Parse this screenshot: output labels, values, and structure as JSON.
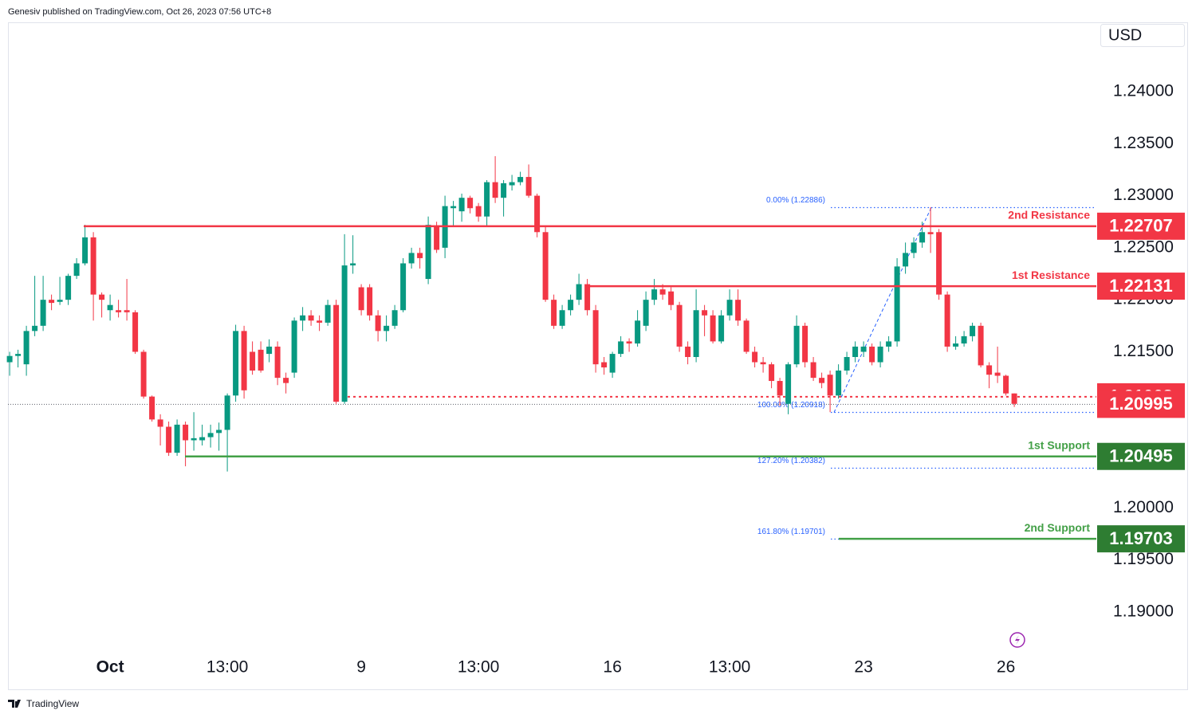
{
  "header": {
    "publisher": "Genesiv published on TradingView.com, Oct 26, 2023 07:56 UTC+8",
    "brand": "TradingView"
  },
  "chart_data": {
    "type": "candlestick",
    "currency": "USD",
    "up_color": "#089981",
    "down_color": "#f23645",
    "xlim": [
      -0.2,
      129.8
    ],
    "xticks": [
      {
        "value": 12,
        "label": "Oct"
      },
      {
        "value": 26,
        "label": "13:00"
      },
      {
        "value": 42,
        "label": "9"
      },
      {
        "value": 56,
        "label": "13:00"
      },
      {
        "value": 72,
        "label": "16"
      },
      {
        "value": 86,
        "label": "13:00"
      },
      {
        "value": 102,
        "label": "23"
      },
      {
        "value": 119,
        "label": "26"
      }
    ],
    "ylim": [
      1.18257,
      1.24666
    ],
    "yticks": [
      {
        "value": 1.19,
        "label": "1.19000"
      },
      {
        "value": 1.195,
        "label": "1.19500"
      },
      {
        "value": 1.2,
        "label": "1.20000"
      },
      {
        "value": 1.205,
        "label": "1.20500"
      },
      {
        "value": 1.21,
        "label": "1.21000"
      },
      {
        "value": 1.215,
        "label": "1.21500"
      },
      {
        "value": 1.22,
        "label": "1.22000"
      },
      {
        "value": 1.225,
        "label": "1.22500"
      },
      {
        "value": 1.23,
        "label": "1.23000"
      },
      {
        "value": 1.235,
        "label": "1.23500"
      },
      {
        "value": 1.24,
        "label": "1.24000"
      }
    ],
    "open": [
      1.214,
      1.2146,
      1.2138,
      1.217,
      1.2175,
      1.22,
      1.2198,
      1.22,
      1.2223,
      1.2235,
      1.226,
      1.2205,
      1.219,
      1.219,
      1.219,
      1.2188,
      1.215,
      1.2107,
      1.2085,
      1.2078,
      1.2053,
      1.208,
      1.2065,
      1.2065,
      1.2068,
      1.2072,
      1.2075,
      1.2108,
      1.217,
      1.215,
      1.2152,
      1.2148,
      1.2155,
      1.2125,
      1.213,
      1.218,
      1.2185,
      1.218,
      1.2178,
      1.2195,
      1.2102,
      1.2233,
      1.2212,
      1.2212,
      1.2185,
      1.217,
      1.2175,
      1.219,
      1.2235,
      1.2245,
      1.222,
      1.227,
      1.225,
      1.2288,
      1.2285,
      1.2298,
      1.229,
      1.228,
      1.2313,
      1.2298,
      1.231,
      1.2313,
      1.2318,
      1.23,
      1.2265,
      1.22,
      1.2175,
      1.219,
      1.22,
      1.2215,
      1.219,
      1.214,
      1.213,
      1.2148,
      1.216,
      1.2158,
      1.2175,
      1.22,
      1.221,
      1.2208,
      1.2195,
      1.2155,
      1.2145,
      1.219,
      1.2185,
      1.216,
      1.2185,
      1.22,
      1.218,
      1.215,
      1.214,
      1.2138,
      1.2122,
      1.21,
      1.2138,
      1.2175,
      1.214,
      1.2125,
      1.2128,
      1.2108,
      1.2132,
      1.2145,
      1.215,
      1.2155,
      1.214,
      1.2155,
      1.216,
      1.2232,
      1.2245,
      1.2255,
      1.2265,
      1.2265,
      1.2205,
      1.2155,
      1.2158,
      1.2165,
      1.2175,
      1.2137,
      1.213,
      1.2127,
      1.211
    ],
    "high": [
      1.215,
      1.2152,
      1.2175,
      1.2223,
      1.2223,
      1.2205,
      1.2222,
      1.2225,
      1.224,
      1.2272,
      1.2265,
      1.2207,
      1.2205,
      1.22,
      1.222,
      1.219,
      1.2152,
      1.2108,
      1.209,
      1.2083,
      1.2085,
      1.2083,
      1.2092,
      1.208,
      1.208,
      1.2082,
      1.211,
      1.2176,
      1.2175,
      1.216,
      1.216,
      1.2162,
      1.216,
      1.213,
      1.2183,
      1.2193,
      1.219,
      1.2185,
      1.22,
      1.22,
      1.2263,
      1.2262,
      1.2215,
      1.2215,
      1.219,
      1.2185,
      1.2195,
      1.224,
      1.225,
      1.225,
      1.228,
      1.2275,
      1.23,
      1.2295,
      1.2302,
      1.23,
      1.2293,
      1.2315,
      1.2338,
      1.2315,
      1.232,
      1.2323,
      1.233,
      1.2302,
      1.227,
      1.2205,
      1.2195,
      1.2205,
      1.2225,
      1.222,
      1.2195,
      1.2145,
      1.215,
      1.2165,
      1.2163,
      1.219,
      1.2208,
      1.222,
      1.2215,
      1.2212,
      1.2198,
      1.216,
      1.221,
      1.2195,
      1.219,
      1.219,
      1.221,
      1.221,
      1.2182,
      1.2155,
      1.2145,
      1.214,
      1.2125,
      1.214,
      1.2185,
      1.2178,
      1.2145,
      1.213,
      1.2132,
      1.2138,
      1.215,
      1.216,
      1.216,
      1.2158,
      1.216,
      1.2165,
      1.224,
      1.2255,
      1.226,
      1.2275,
      1.2289,
      1.2268,
      1.2208,
      1.2165,
      1.217,
      1.2178,
      1.2178,
      1.214,
      1.2155,
      1.2128,
      1.211
    ],
    "low": [
      1.2127,
      1.2135,
      1.2127,
      1.2165,
      1.217,
      1.219,
      1.2195,
      1.2195,
      1.222,
      1.2233,
      1.218,
      1.2183,
      1.218,
      1.2183,
      1.218,
      1.2148,
      1.2105,
      1.2083,
      1.206,
      1.205,
      1.205,
      1.204,
      1.2055,
      1.206,
      1.2058,
      1.2055,
      1.2035,
      1.2102,
      1.2105,
      1.2128,
      1.213,
      1.214,
      1.2118,
      1.211,
      1.2125,
      1.217,
      1.2175,
      1.217,
      1.2175,
      1.21,
      1.21,
      1.2225,
      1.2185,
      1.218,
      1.216,
      1.216,
      1.2172,
      1.2188,
      1.223,
      1.223,
      1.2215,
      1.2245,
      1.224,
      1.227,
      1.2275,
      1.2283,
      1.2275,
      1.227,
      1.2293,
      1.228,
      1.2305,
      1.231,
      1.2298,
      1.226,
      1.2198,
      1.2172,
      1.2172,
      1.2185,
      1.2195,
      1.2185,
      1.213,
      1.2128,
      1.2125,
      1.2145,
      1.215,
      1.2155,
      1.217,
      1.2195,
      1.22,
      1.219,
      1.215,
      1.2138,
      1.214,
      1.2165,
      1.2158,
      1.2158,
      1.218,
      1.2175,
      1.2148,
      1.2135,
      1.213,
      1.2115,
      1.2098,
      1.209,
      1.2135,
      1.2135,
      1.2122,
      1.2115,
      1.2092,
      1.2105,
      1.2128,
      1.214,
      1.2145,
      1.2137,
      1.2135,
      1.215,
      1.2155,
      1.2225,
      1.224,
      1.225,
      1.2245,
      1.22,
      1.215,
      1.2152,
      1.2155,
      1.216,
      1.2135,
      1.2115,
      1.212,
      1.2108,
      1.2097
    ],
    "close": [
      1.2146,
      1.2148,
      1.217,
      1.2175,
      1.22,
      1.2197,
      1.22,
      1.2223,
      1.2235,
      1.226,
      1.2205,
      1.22,
      1.2195,
      1.2188,
      1.2188,
      1.215,
      1.2107,
      1.2085,
      1.2078,
      1.2053,
      1.208,
      1.2065,
      1.2067,
      1.2068,
      1.2072,
      1.2075,
      1.2108,
      1.217,
      1.2113,
      1.2132,
      1.2132,
      1.2155,
      1.2125,
      1.212,
      1.218,
      1.2185,
      1.218,
      1.2178,
      1.2195,
      1.2102,
      1.2233,
      1.2235,
      1.219,
      1.2185,
      1.217,
      1.2175,
      1.219,
      1.2235,
      1.2245,
      1.224,
      1.2272,
      1.2248,
      1.229,
      1.229,
      1.2298,
      1.2288,
      1.228,
      1.2313,
      1.2298,
      1.2312,
      1.2313,
      1.2318,
      1.23,
      1.2265,
      1.22,
      1.2175,
      1.219,
      1.22,
      1.2215,
      1.219,
      1.2138,
      1.2135,
      1.2148,
      1.216,
      1.2158,
      1.218,
      1.22,
      1.221,
      1.2205,
      1.2195,
      1.2155,
      1.2145,
      1.219,
      1.2185,
      1.216,
      1.2185,
      1.22,
      1.218,
      1.215,
      1.214,
      1.2138,
      1.2122,
      1.2108,
      1.2138,
      1.2175,
      1.214,
      1.2125,
      1.212,
      1.2108,
      1.2132,
      1.2145,
      1.2155,
      1.2155,
      1.214,
      1.2155,
      1.216,
      1.2232,
      1.2245,
      1.2255,
      1.2265,
      1.2263,
      1.2205,
      1.2155,
      1.2158,
      1.2165,
      1.2175,
      1.2137,
      1.2128,
      1.2127,
      1.211,
      1.21
    ],
    "levels": [
      {
        "name": "2nd Resistance",
        "value": 1.22707,
        "color": "#f23645"
      },
      {
        "name": "1st Resistance",
        "value": 1.22131,
        "color": "#f23645"
      },
      {
        "name": "1st Support",
        "value": 1.20495,
        "color": "#43a047"
      },
      {
        "name": "2nd Support",
        "value": 1.19703,
        "color": "#43a047"
      }
    ],
    "price_marks": [
      {
        "value": 1.21068,
        "color": "#f23645"
      },
      {
        "value": 1.20995,
        "color": "#f23645"
      }
    ],
    "fib_color": "#2962ff",
    "fib_levels": [
      {
        "label": "0.00% (1.22886)",
        "value": 1.22886
      },
      {
        "label": "100.00% (1.20918)",
        "value": 1.20918
      },
      {
        "label": "127.20% (1.20382)",
        "value": 1.20382
      },
      {
        "label": "161.80% (1.19701)",
        "value": 1.19701
      }
    ]
  }
}
